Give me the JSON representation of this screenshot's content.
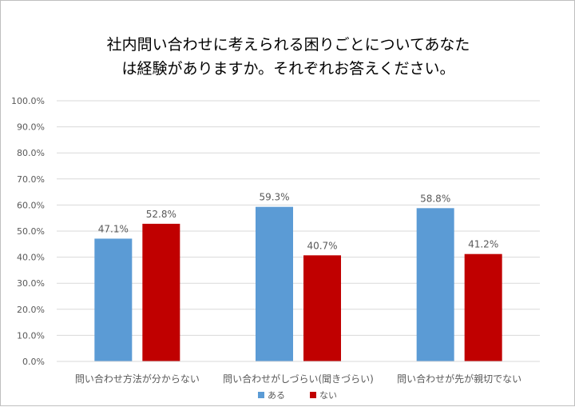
{
  "chart_data": {
    "type": "bar",
    "title": [
      "社内問い合わせに考えられる困りごとについてあなた",
      "は経験がありますか。それぞれお答えください。"
    ],
    "categories": [
      "問い合わせ方法が分からない",
      "問い合わせがしづらい(聞きづらい)",
      "問い合わせが先が親切でない"
    ],
    "series": [
      {
        "name": "ある",
        "values": [
          47.1,
          59.3,
          58.8
        ],
        "color": "#5b9bd5"
      },
      {
        "name": "ない",
        "values": [
          52.8,
          40.7,
          41.2
        ],
        "color": "#c00000"
      }
    ],
    "data_labels": [
      [
        "47.1%",
        "59.3%",
        "58.8%"
      ],
      [
        "52.8%",
        "40.7%",
        "41.2%"
      ]
    ],
    "y_ticks": [
      "0.0%",
      "10.0%",
      "20.0%",
      "30.0%",
      "40.0%",
      "50.0%",
      "60.0%",
      "70.0%",
      "80.0%",
      "90.0%",
      "100.0%"
    ],
    "ylim": [
      0,
      100
    ],
    "grid": true,
    "legend_position": "bottom",
    "gridline_color": "#d9d9d9",
    "text_color": "#595959"
  }
}
